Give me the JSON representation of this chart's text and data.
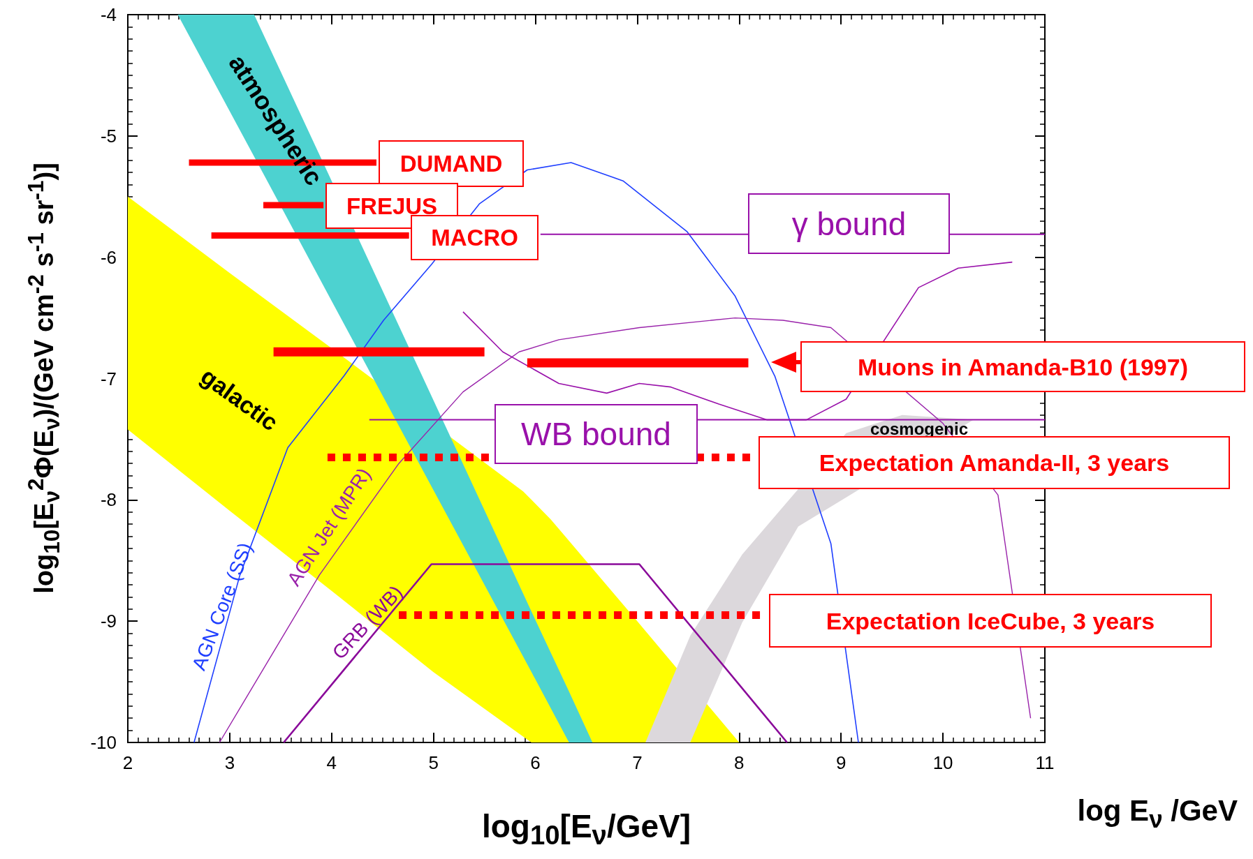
{
  "chart_data": {
    "type": "line",
    "xlabel": "log$_{10}$[E$_{ν}$/GeV]",
    "ylabel": "log$_{10}$[E$_{ν}$$^{2}$Φ(E$_{ν}$)/(GeV cm$^{-2}$ s$^{-1}$ sr$^{-1}$)]",
    "xlim": [
      2,
      11
    ],
    "ylim": [
      -10,
      -4
    ],
    "xticks": [
      2,
      3,
      4,
      5,
      6,
      7,
      8,
      9,
      10,
      11
    ],
    "yticks": [
      -10,
      -9,
      -8,
      -7,
      -6,
      -5,
      -4
    ],
    "grid": false,
    "legend": false,
    "marker": "none",
    "annotations": [
      "log E$_{ν}$ /GeV"
    ],
    "series": [
      {
        "type": "area",
        "name": "galactic",
        "color": "#ffff00",
        "x": [
          2,
          3,
          4,
          5.88,
          6.15,
          7,
          8,
          5.96,
          5,
          4,
          3,
          2
        ],
        "values": [
          -5.5,
          -6.13,
          -6.75,
          -7.93,
          -8.16,
          -9.0,
          -10,
          -10,
          -9.42,
          -8.75,
          -8.09,
          -7.42
        ]
      },
      {
        "type": "area",
        "name": "atmospheric",
        "color": "#4dd2d0",
        "x": [
          2.49,
          3.24,
          4,
          5,
          6,
          6.33,
          6.56,
          6.33,
          6,
          5,
          4,
          3.24
        ],
        "values": [
          -4,
          -4,
          -5.37,
          -7.18,
          -8.99,
          -9.58,
          -10,
          -10,
          -9.48,
          -7.92,
          -6.36,
          -5.17
        ]
      },
      {
        "type": "area",
        "name": "cosmogenic",
        "color": "#dcd8dc",
        "x": [
          7.08,
          7.52,
          8.03,
          9.05,
          9.6,
          10.3,
          8.58,
          8.03,
          7.52
        ],
        "values": [
          -10,
          -9.12,
          -8.45,
          -7.45,
          -7.3,
          -7.34,
          -8.22,
          -9.01,
          -10
        ]
      },
      {
        "name": "AGN Core (SS)",
        "color": "#1f3fff",
        "line_style": "solid",
        "x": [
          2.65,
          3.1,
          3.57,
          4.12,
          4.51,
          4.98,
          5.45,
          5.92,
          6.35,
          6.86,
          7.49,
          7.96,
          8.35,
          8.9,
          9.17
        ],
        "values": [
          -10,
          -8.62,
          -7.57,
          -6.98,
          -6.52,
          -6.06,
          -5.56,
          -5.28,
          -5.22,
          -5.37,
          -5.79,
          -6.32,
          -6.98,
          -8.36,
          -10
        ]
      },
      {
        "name": "AGN Jet (MPR)",
        "color": "#9922aa",
        "line_style": "solid",
        "x": [
          2.9,
          3.88,
          4.66,
          5.29,
          5.84,
          6.23,
          7.02,
          7.96,
          8.43,
          8.9,
          10,
          10.54,
          10.86
        ],
        "values": [
          -10,
          -8.62,
          -7.7,
          -7.11,
          -6.78,
          -6.68,
          -6.58,
          -6.5,
          -6.52,
          -6.58,
          -7.37,
          -7.96,
          -9.8
        ]
      },
      {
        "name": "GRB (WB)",
        "color": "#8a0a9a",
        "line_style": "solid",
        "x": [
          3.53,
          4.98,
          7.02,
          8.47
        ],
        "values": [
          -10,
          -8.53,
          -8.53,
          -10
        ]
      },
      {
        "color": "#9911aa",
        "line_style": "solid",
        "x": [
          5.29,
          5.68,
          6.23,
          6.7,
          7.02,
          7.33,
          7.8,
          8.27,
          8.66,
          9.05,
          9.45,
          9.76,
          10.15,
          10.68
        ],
        "values": [
          -6.45,
          -6.78,
          -7.04,
          -7.12,
          -7.04,
          -7.07,
          -7.21,
          -7.34,
          -7.34,
          -7.17,
          -6.65,
          -6.25,
          -6.09,
          -6.04
        ]
      },
      {
        "name": "γ bound",
        "color": "#9911aa",
        "line_style": "solid",
        "x": [
          6.05,
          11
        ],
        "values": [
          -5.81,
          -5.81
        ]
      },
      {
        "name": "WB bound",
        "color": "#9911aa",
        "line_style": "solid",
        "x": [
          4.37,
          11
        ],
        "values": [
          -7.34,
          -7.34
        ]
      },
      {
        "name": "DUMAND",
        "color": "#ff0000",
        "line_style": "solid",
        "x": [
          2.6,
          4.44
        ],
        "values": [
          -5.22,
          -5.22
        ]
      },
      {
        "name": "FREJUS",
        "color": "#ff0000",
        "line_style": "solid",
        "x": [
          3.33,
          3.92
        ],
        "values": [
          -5.57,
          -5.57
        ]
      },
      {
        "name": "MACRO",
        "color": "#ff0000",
        "line_style": "solid",
        "x": [
          2.82,
          4.76
        ],
        "values": [
          -5.82,
          -5.82
        ]
      },
      {
        "name": "Muons in Amanda-B10 (1997)",
        "color": "#ff0000",
        "line_style": "solid",
        "x": [
          3.43,
          5.5,
          5.7,
          5.92,
          8.09
        ],
        "values": [
          -6.78,
          -6.78,
          null,
          -6.87,
          -6.87
        ]
      },
      {
        "name": "Expectation Amanda-II, 3 years",
        "color": "#ff0000",
        "line_style": "dotted",
        "x": [
          3.96,
          8.17
        ],
        "values": [
          -7.65,
          -7.65
        ]
      },
      {
        "name": "Expectation IceCube, 3 years",
        "color": "#ff0000",
        "line_style": "dotted",
        "x": [
          4.66,
          8.27
        ],
        "values": [
          -8.95,
          -8.95
        ]
      }
    ]
  }
}
